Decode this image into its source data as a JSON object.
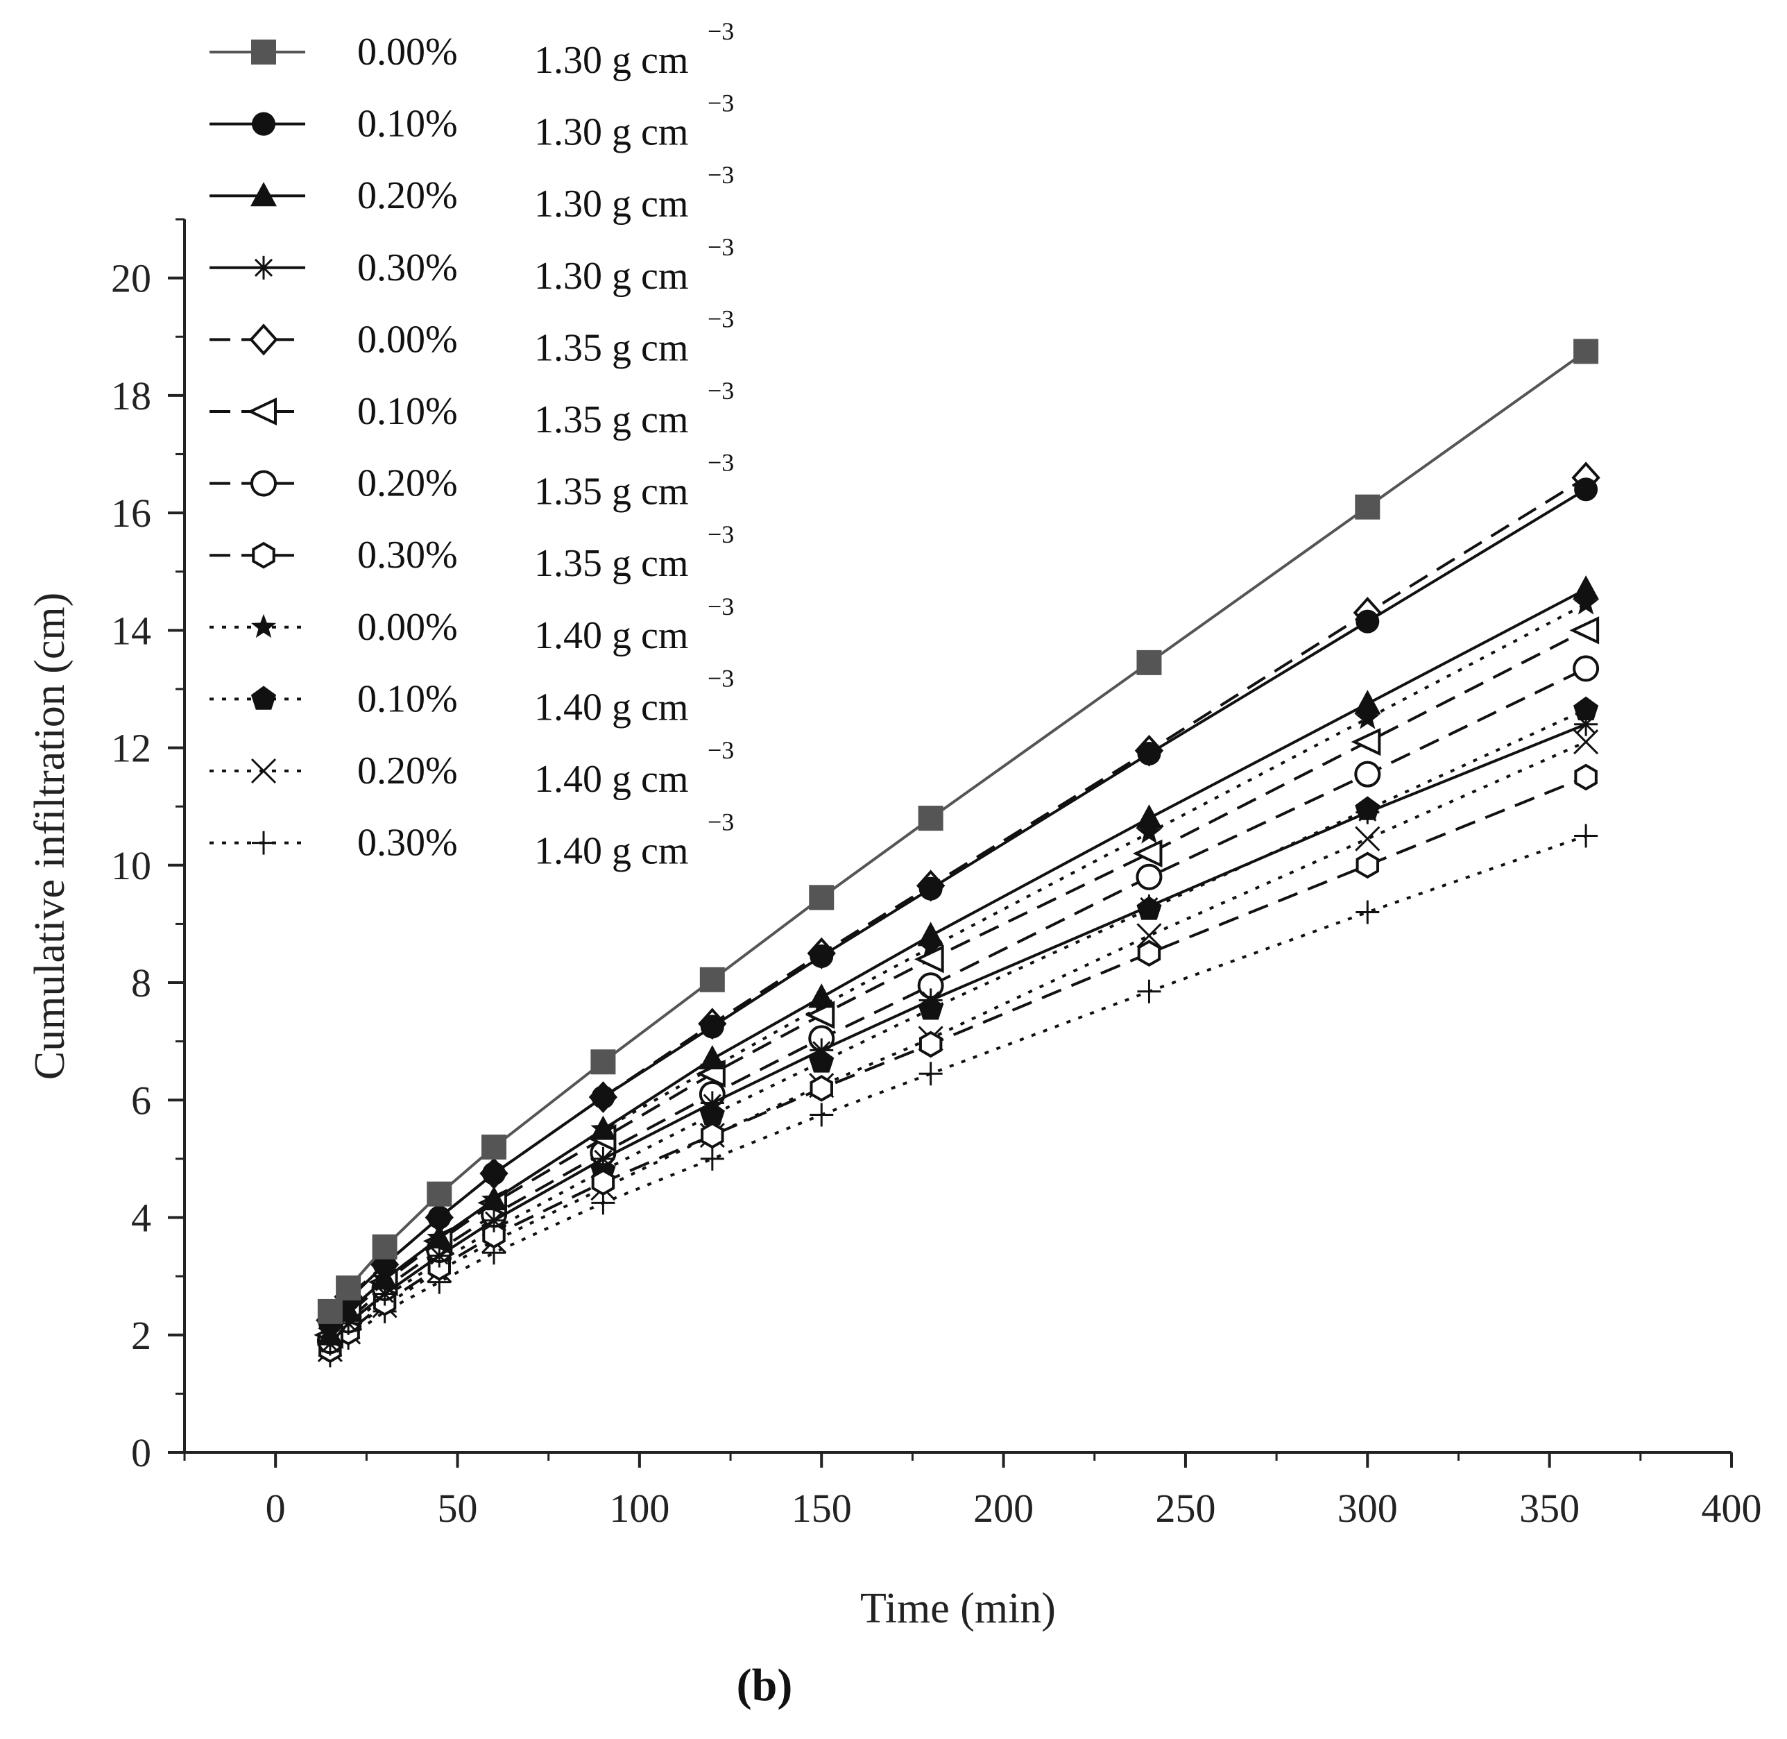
{
  "chart_data": {
    "type": "line",
    "title": "",
    "panel_label": "(b)",
    "xlabel": "Time (min)",
    "ylabel": "Cumulative infiltration (cm)",
    "xlim": [
      -25,
      400
    ],
    "ylim": [
      0,
      21
    ],
    "x_ticks": [
      0,
      50,
      100,
      150,
      200,
      250,
      300,
      350,
      400
    ],
    "y_ticks": [
      0,
      2,
      4,
      6,
      8,
      10,
      12,
      14,
      16,
      18,
      20
    ],
    "x_tick_labels": [
      "0",
      "50",
      "100",
      "150",
      "200",
      "250",
      "300",
      "350",
      "400"
    ],
    "y_tick_labels": [
      "0",
      "2",
      "4",
      "6",
      "8",
      "10",
      "12",
      "14",
      "16",
      "18",
      "20"
    ],
    "legend_position": "top-left",
    "x": [
      15,
      20,
      30,
      45,
      60,
      90,
      120,
      150,
      180,
      240,
      300,
      360
    ],
    "series": [
      {
        "name": "0.00%",
        "density": "1.30 g cm",
        "density_exp": "−3",
        "marker": "square",
        "line": "solid",
        "color": "#555555",
        "values": [
          2.4,
          2.8,
          3.5,
          4.4,
          5.2,
          6.65,
          8.05,
          9.45,
          10.8,
          13.45,
          16.1,
          18.75
        ]
      },
      {
        "name": "0.10%",
        "density": "1.30 g cm",
        "density_exp": "−3",
        "marker": "circle",
        "line": "solid",
        "color": "#111111",
        "values": [
          2.2,
          2.6,
          3.2,
          4.0,
          4.75,
          6.05,
          7.25,
          8.45,
          9.6,
          11.9,
          14.15,
          16.4
        ]
      },
      {
        "name": "0.20%",
        "density": "1.30 g cm",
        "density_exp": "−3",
        "marker": "triangle",
        "line": "solid",
        "color": "#111111",
        "values": [
          2.0,
          2.4,
          2.95,
          3.65,
          4.3,
          5.5,
          6.7,
          7.75,
          8.8,
          10.8,
          12.75,
          14.7
        ]
      },
      {
        "name": "0.30%",
        "density": "1.30 g cm",
        "density_exp": "−3",
        "marker": "asterisk",
        "line": "solid",
        "color": "#111111",
        "values": [
          1.85,
          2.2,
          2.7,
          3.35,
          3.95,
          5.0,
          5.95,
          6.85,
          7.7,
          9.3,
          10.9,
          12.4
        ]
      },
      {
        "name": "0.00%",
        "density": "1.35 g cm",
        "density_exp": "−3",
        "marker": "diamond-open",
        "line": "dashed",
        "color": "#111111",
        "values": [
          2.25,
          2.65,
          3.2,
          4.0,
          4.75,
          6.05,
          7.3,
          8.5,
          9.65,
          11.95,
          14.3,
          16.6
        ]
      },
      {
        "name": "0.10%",
        "density": "1.35 g cm",
        "density_exp": "−3",
        "marker": "triangle-left-open",
        "line": "dashed",
        "color": "#111111",
        "values": [
          2.0,
          2.35,
          2.9,
          3.6,
          4.25,
          5.35,
          6.45,
          7.45,
          8.4,
          10.2,
          12.1,
          14.0
        ]
      },
      {
        "name": "0.20%",
        "density": "1.35 g cm",
        "density_exp": "−3",
        "marker": "circle-open",
        "line": "dashed",
        "color": "#111111",
        "values": [
          1.9,
          2.25,
          2.8,
          3.45,
          4.05,
          5.1,
          6.1,
          7.05,
          7.95,
          9.8,
          11.55,
          13.35
        ]
      },
      {
        "name": "0.30%",
        "density": "1.35 g cm",
        "density_exp": "−3",
        "marker": "hexagon-open",
        "line": "dashed",
        "color": "#111111",
        "values": [
          1.75,
          2.05,
          2.55,
          3.15,
          3.7,
          4.6,
          5.4,
          6.2,
          6.95,
          8.5,
          10.0,
          11.5
        ]
      },
      {
        "name": "0.00%",
        "density": "1.40 g cm",
        "density_exp": "−3",
        "marker": "star",
        "line": "dotted",
        "color": "#111111",
        "values": [
          2.05,
          2.4,
          2.95,
          3.65,
          4.3,
          5.5,
          6.55,
          7.6,
          8.6,
          10.55,
          12.5,
          14.45
        ]
      },
      {
        "name": "0.10%",
        "density": "1.40 g cm",
        "density_exp": "−3",
        "marker": "pentagon",
        "line": "dotted",
        "color": "#111111",
        "values": [
          1.85,
          2.15,
          2.65,
          3.25,
          3.8,
          4.8,
          5.75,
          6.65,
          7.55,
          9.25,
          10.95,
          12.65
        ]
      },
      {
        "name": "0.20%",
        "density": "1.40 g cm",
        "density_exp": "−3",
        "marker": "x",
        "line": "dotted",
        "color": "#111111",
        "values": [
          1.75,
          2.05,
          2.5,
          3.1,
          3.6,
          4.5,
          5.4,
          6.25,
          7.05,
          8.8,
          10.45,
          12.1
        ]
      },
      {
        "name": "0.30%",
        "density": "1.40 g cm",
        "density_exp": "−3",
        "marker": "plus",
        "line": "dotted",
        "color": "#111111",
        "values": [
          1.65,
          1.95,
          2.4,
          2.9,
          3.4,
          4.25,
          5.0,
          5.75,
          6.45,
          7.85,
          9.2,
          10.5
        ]
      }
    ]
  }
}
